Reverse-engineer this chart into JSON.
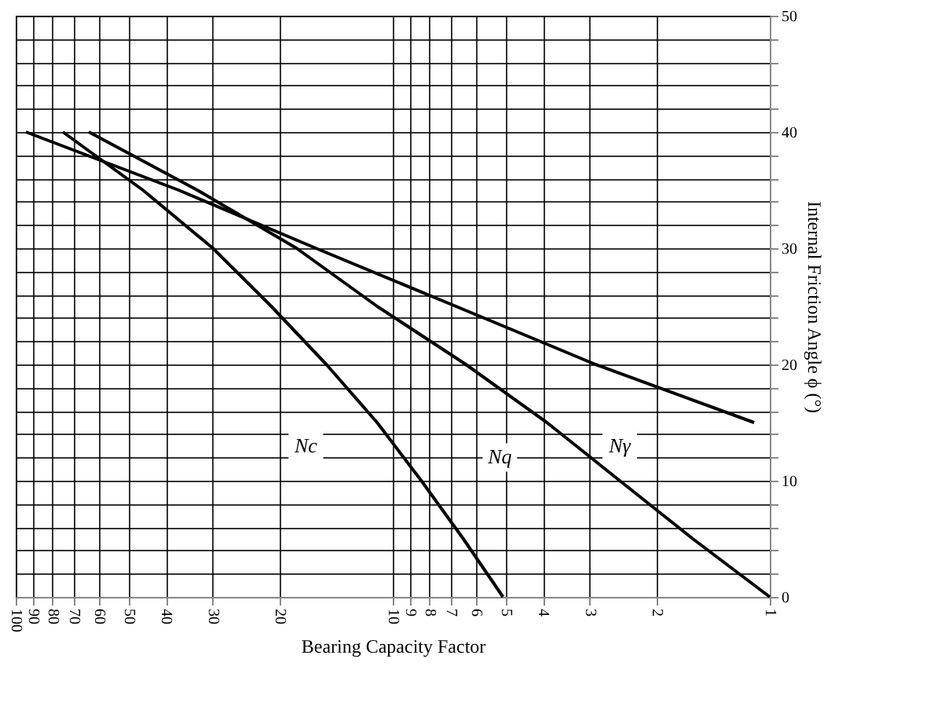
{
  "chart_data": {
    "type": "line",
    "xlabel": "Bearing Capacity Factor",
    "ylabel": "Internal Friction Angle ϕ (°)",
    "log": "x",
    "xlim": [
      100,
      1
    ],
    "ylim": [
      0,
      50
    ],
    "xticks": [
      1,
      2,
      3,
      4,
      5,
      6,
      7,
      8,
      9,
      10,
      20,
      30,
      40,
      50,
      60,
      70,
      80,
      90,
      100
    ],
    "yticks": [
      0,
      {
        "value": 2,
        "label": null
      },
      {
        "value": 4,
        "label": null
      },
      {
        "value": 6,
        "label": null
      },
      {
        "value": 8,
        "label": null
      },
      10,
      {
        "value": 12,
        "label": null
      },
      {
        "value": 14,
        "label": null
      },
      {
        "value": 16,
        "label": null
      },
      {
        "value": 18,
        "label": null
      },
      20,
      {
        "value": 22,
        "label": null
      },
      {
        "value": 24,
        "label": null
      },
      {
        "value": 26,
        "label": null
      },
      {
        "value": 28,
        "label": null
      },
      30,
      {
        "value": 32,
        "label": null
      },
      {
        "value": 34,
        "label": null
      },
      {
        "value": 36,
        "label": null
      },
      {
        "value": 38,
        "label": null
      },
      40,
      {
        "value": 42,
        "label": null
      },
      {
        "value": 44,
        "label": null
      },
      {
        "value": 46,
        "label": null
      },
      {
        "value": 48,
        "label": null
      },
      50
    ],
    "grid": true,
    "legend": false,
    "series": [
      {
        "color": "#000000",
        "values": [
          0,
          5,
          10,
          15,
          20,
          25,
          30,
          35,
          40
        ],
        "x": [
          5.1,
          6.5,
          8.4,
          11,
          15,
          21,
          30,
          46,
          75
        ]
      },
      {
        "color": "#000000",
        "values": [
          0,
          5,
          10,
          15,
          20,
          25,
          30,
          35,
          40
        ],
        "x": [
          1,
          1.6,
          2.5,
          3.9,
          6.4,
          11,
          18,
          33,
          64
        ]
      },
      {
        "color": "#000000",
        "values": [
          15,
          20,
          25,
          30,
          35,
          40
        ],
        "x": [
          1.1,
          2.9,
          6.8,
          16,
          37,
          94
        ]
      }
    ],
    "annotations": [
      {
        "text": "Nc",
        "x": 17,
        "y": 13
      },
      {
        "text": "Nq",
        "x": 5.2,
        "y": 12
      },
      {
        "text": "Nγ",
        "x": 2.5,
        "y": 13
      }
    ]
  }
}
